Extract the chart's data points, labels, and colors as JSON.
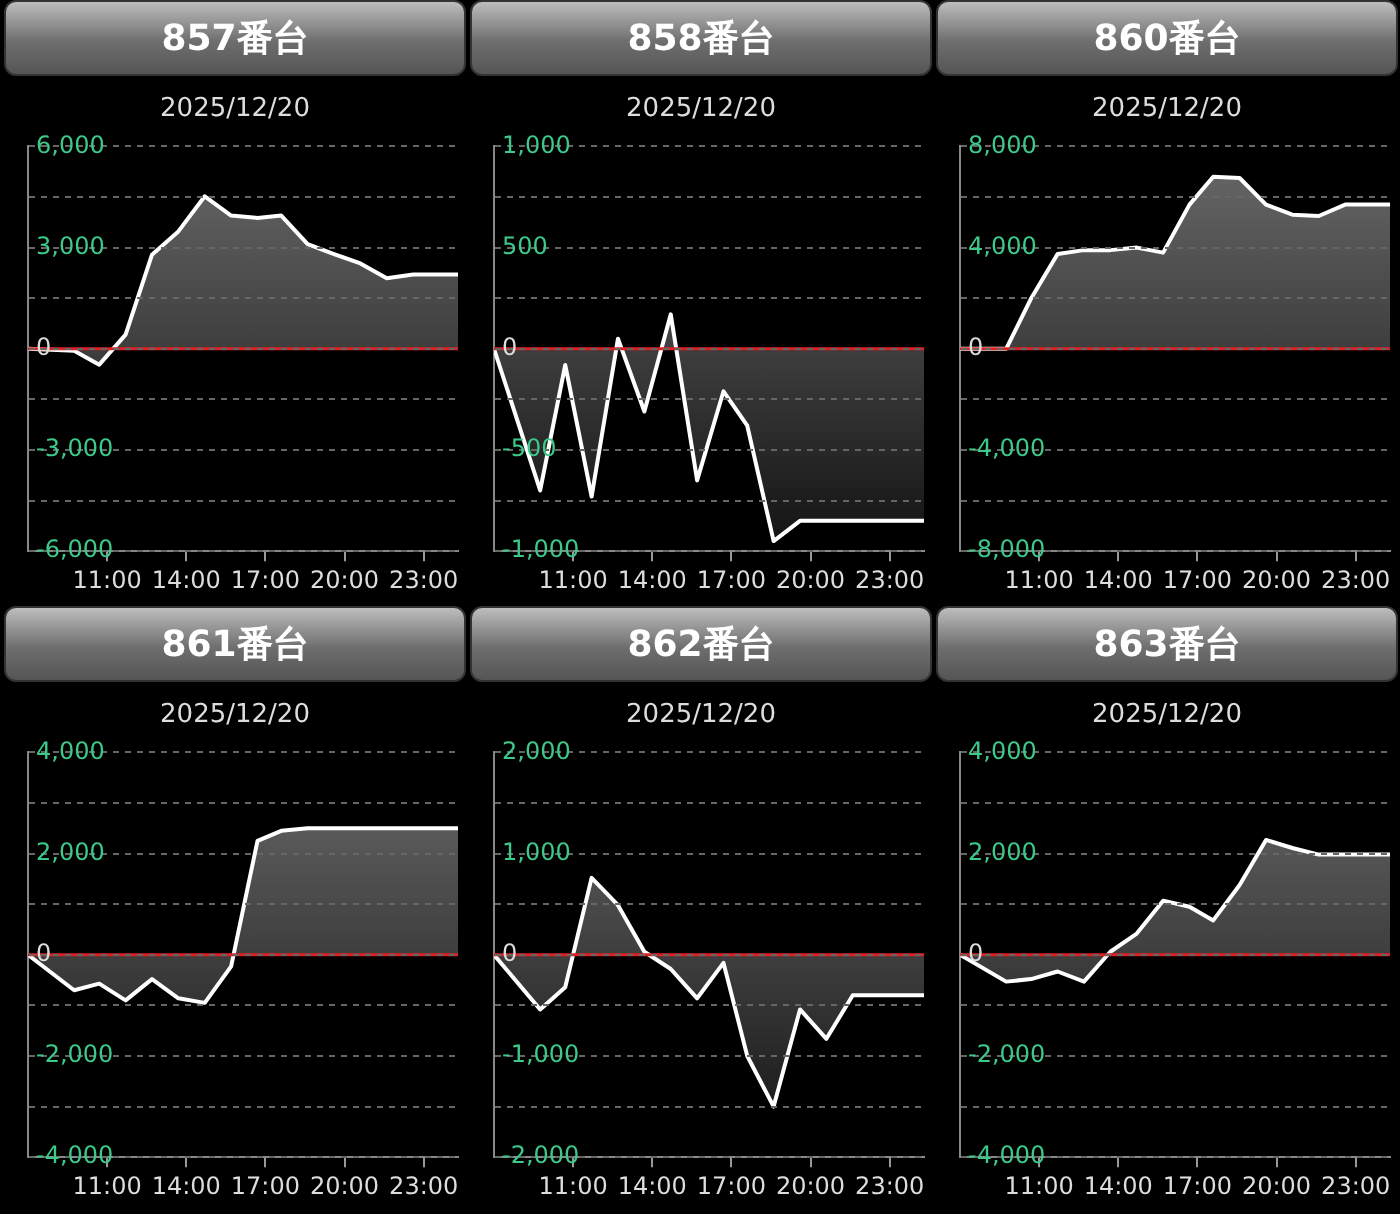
{
  "chart_data": [
    {
      "type": "area",
      "title": "857番台",
      "subtitle": "2025/12/20",
      "x": [
        8,
        9.75,
        10.7,
        11.7,
        12.7,
        13.7,
        14.7,
        15.7,
        16.7,
        17.6,
        18.6,
        19.6,
        20.6,
        21.6,
        22.6,
        24.3
      ],
      "values": [
        0,
        -60,
        -470,
        420,
        2790,
        3480,
        4520,
        3950,
        3880,
        3950,
        3100,
        2810,
        2530,
        2090,
        2200,
        2200
      ],
      "color": "#ffffff",
      "xlim": [
        8,
        24.3
      ],
      "xticks": [
        {
          "value": 11,
          "label": "11:00"
        },
        {
          "value": 14,
          "label": "14:00"
        },
        {
          "value": 17,
          "label": "17:00"
        },
        {
          "value": 20,
          "label": "20:00"
        },
        {
          "value": 23,
          "label": "23:00"
        }
      ],
      "ylim": [
        -6000,
        6000
      ],
      "yticks": [
        {
          "value": -6000,
          "label": "-6,000"
        },
        {
          "value": -4500,
          "label": null
        },
        {
          "value": -3000,
          "label": "-3,000"
        },
        {
          "value": -1500,
          "label": null
        },
        0,
        {
          "value": 1500,
          "label": null
        },
        {
          "value": 3000,
          "label": "3,000"
        },
        {
          "value": 4500,
          "label": null
        },
        {
          "value": 6000,
          "label": "6,000"
        }
      ],
      "grid": "y",
      "marker": "none",
      "ref_lines": [
        {
          "axis": "y",
          "value": 0,
          "color": "#e02020"
        }
      ]
    },
    {
      "type": "area",
      "title": "858番台",
      "subtitle": "2025/12/20",
      "x": [
        8,
        9.75,
        10.7,
        11.7,
        12.7,
        13.7,
        14.7,
        15.7,
        16.7,
        17.6,
        18.6,
        19.6,
        24.3
      ],
      "values": [
        0,
        -700,
        -80,
        -730,
        50,
        -310,
        170,
        -650,
        -210,
        -380,
        -950,
        -850,
        -850
      ],
      "color": "#ffffff",
      "xlim": [
        8,
        24.3
      ],
      "xticks": [
        {
          "value": 11,
          "label": "11:00"
        },
        {
          "value": 14,
          "label": "14:00"
        },
        {
          "value": 17,
          "label": "17:00"
        },
        {
          "value": 20,
          "label": "20:00"
        },
        {
          "value": 23,
          "label": "23:00"
        }
      ],
      "ylim": [
        -1000,
        1000
      ],
      "yticks": [
        {
          "value": -1000,
          "label": "-1,000"
        },
        {
          "value": -750,
          "label": null
        },
        -500,
        {
          "value": -250,
          "label": null
        },
        0,
        {
          "value": 250,
          "label": null
        },
        500,
        {
          "value": 750,
          "label": null
        },
        {
          "value": 1000,
          "label": "1,000"
        }
      ],
      "grid": "y",
      "marker": "none",
      "ref_lines": [
        {
          "axis": "y",
          "value": 0,
          "color": "#e02020"
        }
      ]
    },
    {
      "type": "area",
      "title": "860番台",
      "subtitle": "2025/12/20",
      "x": [
        8,
        9.75,
        10.7,
        11.7,
        12.7,
        13.7,
        14.7,
        15.7,
        16.7,
        17.6,
        18.6,
        19.6,
        20.6,
        21.6,
        22.6,
        24.3
      ],
      "values": [
        0,
        0,
        2000,
        3750,
        3900,
        3900,
        4000,
        3800,
        5700,
        6800,
        6750,
        5700,
        5300,
        5250,
        5700,
        5700
      ],
      "color": "#ffffff",
      "xlim": [
        8,
        24.3
      ],
      "xticks": [
        {
          "value": 11,
          "label": "11:00"
        },
        {
          "value": 14,
          "label": "14:00"
        },
        {
          "value": 17,
          "label": "17:00"
        },
        {
          "value": 20,
          "label": "20:00"
        },
        {
          "value": 23,
          "label": "23:00"
        }
      ],
      "ylim": [
        -8000,
        8000
      ],
      "yticks": [
        {
          "value": -8000,
          "label": "-8,000"
        },
        {
          "value": -6000,
          "label": null
        },
        {
          "value": -4000,
          "label": "-4,000"
        },
        {
          "value": -2000,
          "label": null
        },
        0,
        {
          "value": 2000,
          "label": null
        },
        {
          "value": 4000,
          "label": "4,000"
        },
        {
          "value": 6000,
          "label": null
        },
        {
          "value": 8000,
          "label": "8,000"
        }
      ],
      "grid": "y",
      "marker": "none",
      "ref_lines": [
        {
          "axis": "y",
          "value": 0,
          "color": "#e02020"
        }
      ]
    },
    {
      "type": "area",
      "title": "861番台",
      "subtitle": "2025/12/20",
      "x": [
        8,
        9.75,
        10.7,
        11.7,
        12.7,
        13.7,
        14.7,
        15.7,
        16.7,
        17.6,
        18.6,
        24.3
      ],
      "values": [
        0,
        -700,
        -570,
        -900,
        -480,
        -860,
        -950,
        -230,
        2250,
        2450,
        2500,
        2500
      ],
      "color": "#ffffff",
      "xlim": [
        8,
        24.3
      ],
      "xticks": [
        {
          "value": 11,
          "label": "11:00"
        },
        {
          "value": 14,
          "label": "14:00"
        },
        {
          "value": 17,
          "label": "17:00"
        },
        {
          "value": 20,
          "label": "20:00"
        },
        {
          "value": 23,
          "label": "23:00"
        }
      ],
      "ylim": [
        -4000,
        4000
      ],
      "yticks": [
        {
          "value": -4000,
          "label": "-4,000"
        },
        {
          "value": -3000,
          "label": null
        },
        {
          "value": -2000,
          "label": "-2,000"
        },
        {
          "value": -1000,
          "label": null
        },
        0,
        {
          "value": 1000,
          "label": null
        },
        {
          "value": 2000,
          "label": "2,000"
        },
        {
          "value": 3000,
          "label": null
        },
        {
          "value": 4000,
          "label": "4,000"
        }
      ],
      "grid": "y",
      "marker": "none",
      "ref_lines": [
        {
          "axis": "y",
          "value": 0,
          "color": "#e02020"
        }
      ]
    },
    {
      "type": "area",
      "title": "862番台",
      "subtitle": "2025/12/20",
      "x": [
        8,
        9.75,
        10.7,
        11.7,
        12.7,
        13.7,
        14.7,
        15.7,
        16.7,
        17.6,
        18.6,
        19.6,
        20.6,
        21.6,
        24.3
      ],
      "values": [
        0,
        -540,
        -320,
        760,
        490,
        30,
        -140,
        -430,
        -80,
        -1000,
        -1500,
        -540,
        -830,
        -400,
        -400
      ],
      "color": "#ffffff",
      "xlim": [
        8,
        24.3
      ],
      "xticks": [
        {
          "value": 11,
          "label": "11:00"
        },
        {
          "value": 14,
          "label": "14:00"
        },
        {
          "value": 17,
          "label": "17:00"
        },
        {
          "value": 20,
          "label": "20:00"
        },
        {
          "value": 23,
          "label": "23:00"
        }
      ],
      "ylim": [
        -2000,
        2000
      ],
      "yticks": [
        {
          "value": -2000,
          "label": "-2,000"
        },
        {
          "value": -1500,
          "label": null
        },
        {
          "value": -1000,
          "label": "-1,000"
        },
        {
          "value": -500,
          "label": null
        },
        0,
        {
          "value": 500,
          "label": null
        },
        {
          "value": 1000,
          "label": "1,000"
        },
        {
          "value": 1500,
          "label": null
        },
        {
          "value": 2000,
          "label": "2,000"
        }
      ],
      "grid": "y",
      "marker": "none",
      "ref_lines": [
        {
          "axis": "y",
          "value": 0,
          "color": "#e02020"
        }
      ]
    },
    {
      "type": "area",
      "title": "863番台",
      "subtitle": "2025/12/20",
      "x": [
        8,
        9.75,
        10.7,
        11.7,
        12.7,
        13.7,
        14.7,
        15.7,
        16.7,
        17.6,
        18.6,
        19.6,
        20.6,
        21.6,
        24.3
      ],
      "values": [
        0,
        -530,
        -480,
        -330,
        -530,
        60,
        420,
        1070,
        950,
        680,
        1380,
        2270,
        2110,
        1980,
        1980
      ],
      "color": "#ffffff",
      "xlim": [
        8,
        24.3
      ],
      "xticks": [
        {
          "value": 11,
          "label": "11:00"
        },
        {
          "value": 14,
          "label": "14:00"
        },
        {
          "value": 17,
          "label": "17:00"
        },
        {
          "value": 20,
          "label": "20:00"
        },
        {
          "value": 23,
          "label": "23:00"
        }
      ],
      "ylim": [
        -4000,
        4000
      ],
      "yticks": [
        {
          "value": -4000,
          "label": "-4,000"
        },
        {
          "value": -3000,
          "label": null
        },
        {
          "value": -2000,
          "label": "-2,000"
        },
        {
          "value": -1000,
          "label": null
        },
        0,
        {
          "value": 1000,
          "label": null
        },
        {
          "value": 2000,
          "label": "2,000"
        },
        {
          "value": 3000,
          "label": null
        },
        {
          "value": 4000,
          "label": "4,000"
        }
      ],
      "grid": "y",
      "marker": "none",
      "ref_lines": [
        {
          "axis": "y",
          "value": 0,
          "color": "#e02020"
        }
      ]
    }
  ]
}
